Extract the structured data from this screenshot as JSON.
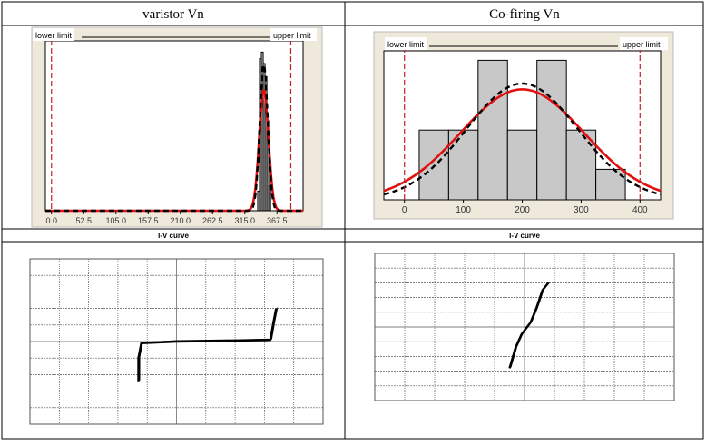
{
  "table": {
    "left_header": "varistor Vn",
    "right_header": "Co-firing Vn",
    "iv_label_left": "I-V curve",
    "iv_label_right": "I-V curve"
  },
  "colors": {
    "panel_bg": "#efe9dc",
    "bar_fill": "#c8c8c8",
    "fit_red": "#e01010",
    "limit_red": "#c0202a",
    "curve_black": "#000000",
    "grid": "#555555"
  },
  "chart_data": [
    {
      "type": "bar",
      "title": "varistor Vn",
      "lower_limit_label": "lower limit",
      "upper_limit_label": "upper limit",
      "lower_limit": 0,
      "upper_limit": 390,
      "xlim": [
        -10,
        410
      ],
      "ylim": [
        0,
        1
      ],
      "xticks": [
        0,
        52.5,
        105,
        157.5,
        210,
        262.5,
        315,
        367.5
      ],
      "xtick_labels": [
        "0.0",
        "52.5",
        "105.0",
        "157.5",
        "210.0",
        "262.5",
        "315.0",
        "367.5"
      ],
      "bins": [
        {
          "x0": 336,
          "x1": 339,
          "h": 0.12
        },
        {
          "x0": 339,
          "x1": 342,
          "h": 0.93
        },
        {
          "x0": 342,
          "x1": 345,
          "h": 0.97
        },
        {
          "x0": 345,
          "x1": 348,
          "h": 0.9
        },
        {
          "x0": 348,
          "x1": 351,
          "h": 0.82
        },
        {
          "x0": 351,
          "x1": 354,
          "h": 0.55
        },
        {
          "x0": 354,
          "x1": 357,
          "h": 0.15
        }
      ],
      "fits": [
        {
          "name": "fit",
          "style": "red-solid",
          "mean": 346,
          "sd": 7.5,
          "peak": 0.74
        },
        {
          "name": "overall",
          "style": "black-dashed",
          "mean": 346,
          "sd": 6.5,
          "peak": 0.9
        }
      ]
    },
    {
      "type": "bar",
      "title": "Co-firing Vn",
      "lower_limit_label": "lower limit",
      "upper_limit_label": "upper limit",
      "lower_limit": 0,
      "upper_limit": 400,
      "xlim": [
        -35,
        435
      ],
      "ylim": [
        0,
        1
      ],
      "xticks": [
        0,
        100,
        200,
        300,
        400
      ],
      "xtick_labels": [
        "0",
        "100",
        "200",
        "300",
        "400"
      ],
      "bins": [
        {
          "x0": 25,
          "x1": 75,
          "h": 0.48
        },
        {
          "x0": 75,
          "x1": 125,
          "h": 0.48
        },
        {
          "x0": 125,
          "x1": 175,
          "h": 0.96
        },
        {
          "x0": 175,
          "x1": 225,
          "h": 0.48
        },
        {
          "x0": 225,
          "x1": 275,
          "h": 0.96
        },
        {
          "x0": 275,
          "x1": 325,
          "h": 0.48
        },
        {
          "x0": 325,
          "x1": 375,
          "h": 0.21
        }
      ],
      "fits": [
        {
          "name": "fit",
          "style": "red-solid",
          "mean": 200,
          "sd": 105,
          "peak": 0.76
        },
        {
          "name": "overall",
          "style": "black-dashed",
          "mean": 200,
          "sd": 95,
          "peak": 0.8
        }
      ]
    },
    {
      "type": "line",
      "title": "I-V curve",
      "grid_columns": 10,
      "grid_rows": 10,
      "series": [
        {
          "name": "I-V",
          "points": [
            [
              -1.3,
              -2.4
            ],
            [
              -1.3,
              -1.0
            ],
            [
              -1.2,
              -0.1
            ],
            [
              0,
              0.0
            ],
            [
              2.0,
              0.05
            ],
            [
              3.2,
              0.1
            ],
            [
              3.3,
              1.1
            ],
            [
              3.4,
              2.0
            ]
          ]
        }
      ]
    },
    {
      "type": "line",
      "title": "I-V curve",
      "grid_columns": 10,
      "grid_rows": 10,
      "series": [
        {
          "name": "I-V",
          "points": [
            [
              -0.5,
              -2.8
            ],
            [
              -0.3,
              -1.4
            ],
            [
              -0.1,
              -0.5
            ],
            [
              0.2,
              0.3
            ],
            [
              0.4,
              1.3
            ],
            [
              0.6,
              2.5
            ],
            [
              0.8,
              3.0
            ]
          ]
        }
      ]
    }
  ]
}
